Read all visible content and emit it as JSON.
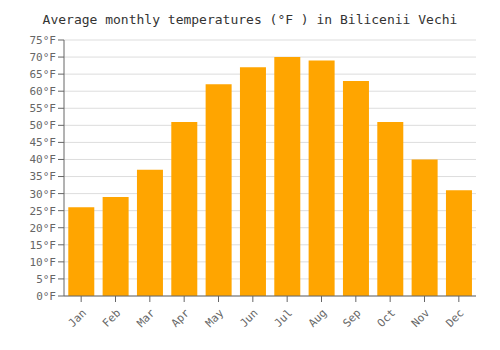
{
  "chart_data": {
    "type": "bar",
    "title": "Average monthly temperatures (°F ) in Bilicenii Vechi",
    "categories": [
      "Jan",
      "Feb",
      "Mar",
      "Apr",
      "May",
      "Jun",
      "Jul",
      "Aug",
      "Sep",
      "Oct",
      "Nov",
      "Dec"
    ],
    "values": [
      26,
      29,
      37,
      51,
      62,
      67,
      70,
      69,
      63,
      51,
      40,
      31
    ],
    "color": "#FFA500",
    "ylim": [
      0,
      75
    ],
    "yticks": [
      {
        "value": 0,
        "label": "0°F"
      },
      {
        "value": 5,
        "label": "5°F"
      },
      {
        "value": 10,
        "label": "10°F"
      },
      {
        "value": 15,
        "label": "15°F"
      },
      {
        "value": 20,
        "label": "20°F"
      },
      {
        "value": 25,
        "label": "25°F"
      },
      {
        "value": 30,
        "label": "30°F"
      },
      {
        "value": 35,
        "label": "35°F"
      },
      {
        "value": 40,
        "label": "40°F"
      },
      {
        "value": 45,
        "label": "45°F"
      },
      {
        "value": 50,
        "label": "50°F"
      },
      {
        "value": 55,
        "label": "55°F"
      },
      {
        "value": 60,
        "label": "60°F"
      },
      {
        "value": 65,
        "label": "65°F"
      },
      {
        "value": 70,
        "label": "70°F"
      },
      {
        "value": 75,
        "label": "75°F"
      }
    ],
    "grid": true
  }
}
